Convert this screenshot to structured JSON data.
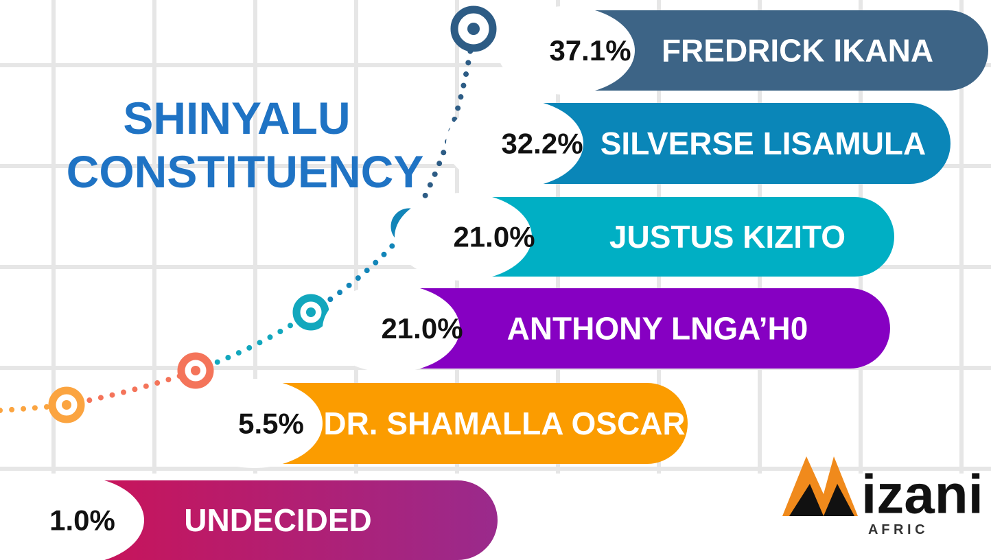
{
  "title": [
    "SHINYALU",
    "CONSTITUENCY"
  ],
  "candidates": [
    {
      "name": "FREDRICK IKANA",
      "percent": "37.1%"
    },
    {
      "name": "SILVERSE  LISAMULA",
      "percent": "32.2%"
    },
    {
      "name": "JUSTUS KIZITO",
      "percent": "21.0%"
    },
    {
      "name": "ANTHONY LNGA’H0",
      "percent": "21.0%"
    },
    {
      "name": "DR. SHAMALLA OSCAR",
      "percent": "5.5%"
    },
    {
      "name": "UNDECIDED",
      "percent": "1.0%"
    }
  ],
  "logo": {
    "name": "izani",
    "tagline": "A F R I C"
  }
}
